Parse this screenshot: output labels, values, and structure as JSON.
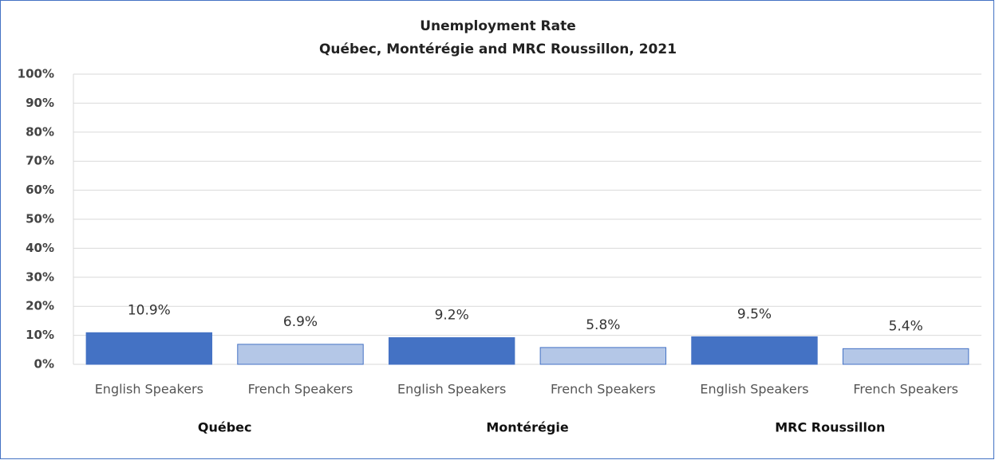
{
  "chart_data": {
    "type": "bar",
    "title": "Unemployment Rate",
    "subtitle": "Québec, Montérégie and MRC Roussillon,  2021",
    "categories": [
      "English Speakers",
      "French Speakers",
      "English Speakers",
      "French Speakers",
      "English Speakers",
      "French Speakers"
    ],
    "groups": [
      "Québec",
      "Montérégie",
      "MRC Roussillon"
    ],
    "values": [
      10.9,
      6.9,
      9.2,
      5.8,
      9.5,
      5.4
    ],
    "value_labels": [
      "10.9%",
      "6.9%",
      "9.2%",
      "5.8%",
      "9.5%",
      "5.4%"
    ],
    "colors": [
      "#4472c4",
      "#b4c7e7",
      "#4472c4",
      "#b4c7e7",
      "#4472c4",
      "#b4c7e7"
    ],
    "ylim": [
      0,
      100
    ],
    "yticks": [
      {
        "value": 0,
        "label": "0%"
      },
      {
        "value": 10,
        "label": "10%"
      },
      {
        "value": 20,
        "label": "20%"
      },
      {
        "value": 30,
        "label": "30%"
      },
      {
        "value": 40,
        "label": "40%"
      },
      {
        "value": 50,
        "label": "50%"
      },
      {
        "value": 60,
        "label": "60%"
      },
      {
        "value": 70,
        "label": "70%"
      },
      {
        "value": 80,
        "label": "80%"
      },
      {
        "value": 90,
        "label": "90%"
      },
      {
        "value": 100,
        "label": "100%"
      }
    ],
    "grid": true
  }
}
